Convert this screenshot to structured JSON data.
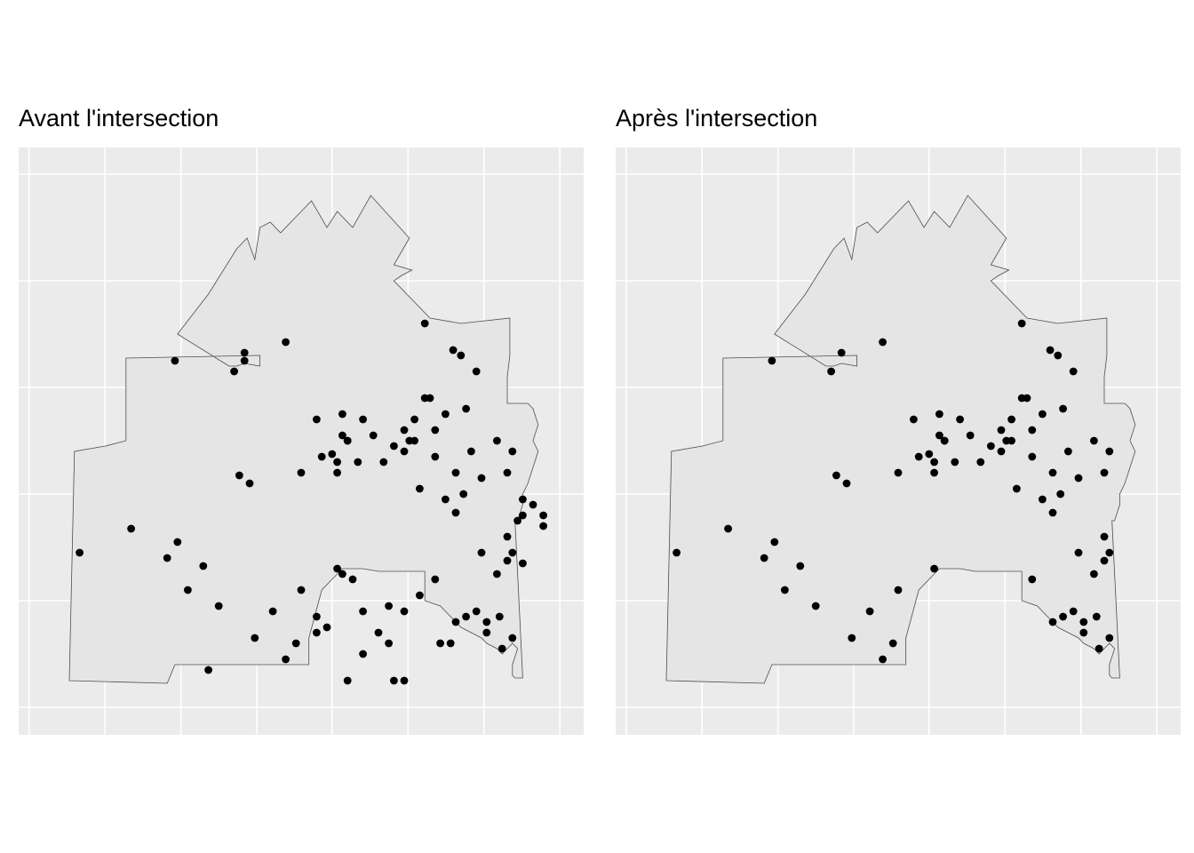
{
  "chart_data": [
    {
      "type": "scatter",
      "title": "Avant l'intersection",
      "xlabel": "",
      "ylabel": "",
      "grid": true,
      "legend": "none",
      "colors": {
        "panel": "#ebebeb",
        "grid": "#ffffff",
        "polygon_fill": "#e5e5e5",
        "polygon_stroke": "#4d4d4d",
        "point": "#000000"
      },
      "xlim": [
        0,
        100
      ],
      "ylim": [
        0,
        100
      ],
      "polygon": [
        [
          5,
          5
        ],
        [
          24,
          4.5
        ],
        [
          25.5,
          8
        ],
        [
          51.5,
          8
        ],
        [
          51.5,
          13
        ],
        [
          54,
          22
        ],
        [
          57,
          25
        ],
        [
          58,
          26
        ],
        [
          62,
          26
        ],
        [
          65,
          25.5
        ],
        [
          74,
          25.5
        ],
        [
          74,
          20
        ],
        [
          77,
          19
        ],
        [
          78,
          18
        ],
        [
          79,
          17
        ],
        [
          80,
          16
        ],
        [
          81,
          15
        ],
        [
          83,
          14
        ],
        [
          85,
          13
        ],
        [
          86,
          12
        ],
        [
          88,
          11
        ],
        [
          89,
          10
        ],
        [
          90,
          11
        ],
        [
          91,
          12
        ],
        [
          92,
          11
        ],
        [
          91,
          8
        ],
        [
          91,
          6
        ],
        [
          91.5,
          5.5
        ],
        [
          93,
          5.5
        ],
        [
          91.5,
          35
        ],
        [
          92,
          35
        ],
        [
          93,
          38
        ],
        [
          93,
          40
        ],
        [
          94,
          42
        ],
        [
          96,
          48
        ],
        [
          95,
          50
        ],
        [
          96,
          53
        ],
        [
          95,
          56
        ],
        [
          94,
          57
        ],
        [
          90,
          57
        ],
        [
          90,
          62
        ],
        [
          90.5,
          66
        ],
        [
          90.5,
          73
        ],
        [
          81,
          72
        ],
        [
          75,
          73
        ],
        [
          68,
          80
        ],
        [
          69.5,
          81
        ],
        [
          71.5,
          82
        ],
        [
          68,
          83
        ],
        [
          71,
          88
        ],
        [
          63.5,
          96
        ],
        [
          60,
          90
        ],
        [
          57,
          93
        ],
        [
          55,
          90
        ],
        [
          52,
          95
        ],
        [
          49,
          92
        ],
        [
          46,
          89
        ],
        [
          44,
          91
        ],
        [
          42,
          90
        ],
        [
          41.5,
          87
        ],
        [
          41,
          84
        ],
        [
          39.5,
          88
        ],
        [
          37.5,
          86
        ],
        [
          32,
          77.5
        ],
        [
          26,
          70
        ],
        [
          36,
          64
        ],
        [
          37.5,
          64
        ],
        [
          39,
          64.5
        ],
        [
          42,
          64
        ],
        [
          42,
          66
        ],
        [
          16,
          65.5
        ],
        [
          16,
          50
        ],
        [
          12,
          49
        ],
        [
          6,
          48
        ],
        [
          5,
          5
        ]
      ],
      "points": [
        [
          7,
          29
        ],
        [
          17,
          33.5
        ],
        [
          26,
          31
        ],
        [
          28,
          22
        ],
        [
          31,
          26.5
        ],
        [
          34,
          19
        ],
        [
          25.5,
          65
        ],
        [
          39,
          66.5
        ],
        [
          47,
          68.5
        ],
        [
          40,
          42
        ],
        [
          38,
          43.5
        ],
        [
          50,
          44
        ],
        [
          59,
          50
        ],
        [
          61,
          46
        ],
        [
          64,
          51
        ],
        [
          66,
          46
        ],
        [
          68,
          49
        ],
        [
          70,
          48
        ],
        [
          71,
          50
        ],
        [
          73,
          41
        ],
        [
          78,
          39
        ],
        [
          80,
          44
        ],
        [
          81.5,
          40
        ],
        [
          76,
          47
        ],
        [
          74,
          58
        ],
        [
          76,
          52
        ],
        [
          80,
          36.5
        ],
        [
          85,
          29
        ],
        [
          90,
          27.5
        ],
        [
          88,
          25
        ],
        [
          88.5,
          17
        ],
        [
          91,
          13
        ],
        [
          89,
          11
        ],
        [
          86,
          14
        ],
        [
          84,
          18
        ],
        [
          76,
          24
        ],
        [
          73,
          21
        ],
        [
          70,
          18
        ],
        [
          65,
          14
        ],
        [
          62,
          18
        ],
        [
          60,
          24
        ],
        [
          58,
          25
        ],
        [
          57,
          26
        ],
        [
          50,
          22
        ],
        [
          49,
          12
        ],
        [
          44.5,
          18
        ],
        [
          41,
          13
        ],
        [
          32,
          7
        ],
        [
          47,
          9
        ],
        [
          55,
          15
        ],
        [
          59,
          5
        ],
        [
          67,
          19
        ],
        [
          68,
          5
        ],
        [
          79,
          12
        ],
        [
          86,
          16
        ],
        [
          92,
          35
        ],
        [
          93,
          36
        ],
        [
          95,
          38
        ],
        [
          97,
          34
        ],
        [
          97,
          36
        ],
        [
          93,
          39
        ],
        [
          85,
          43
        ],
        [
          78,
          55
        ],
        [
          82,
          56
        ],
        [
          84,
          63
        ],
        [
          74,
          72
        ],
        [
          90,
          44
        ],
        [
          91,
          48
        ],
        [
          88,
          50
        ],
        [
          79.5,
          67
        ],
        [
          81,
          66
        ],
        [
          83,
          48
        ],
        [
          72,
          50
        ],
        [
          70,
          52
        ],
        [
          72,
          54
        ],
        [
          75,
          58
        ],
        [
          59,
          50
        ],
        [
          58,
          51
        ],
        [
          62,
          54
        ],
        [
          57,
          44
        ],
        [
          57,
          46
        ],
        [
          58,
          55
        ],
        [
          53,
          54
        ],
        [
          54,
          47
        ],
        [
          56,
          47.5
        ],
        [
          37,
          63
        ],
        [
          39,
          65
        ],
        [
          24,
          28
        ],
        [
          53,
          14
        ],
        [
          53,
          17
        ],
        [
          62,
          10
        ],
        [
          67,
          12
        ],
        [
          70,
          5
        ],
        [
          77,
          12
        ],
        [
          80,
          16
        ],
        [
          82,
          17
        ],
        [
          90,
          32
        ],
        [
          91,
          29
        ],
        [
          93,
          27
        ]
      ]
    },
    {
      "type": "scatter",
      "title": "Après l'intersection",
      "xlabel": "",
      "ylabel": "",
      "grid": true,
      "legend": "none",
      "xlim": [
        0,
        100
      ],
      "ylim": [
        0,
        100
      ]
    }
  ]
}
